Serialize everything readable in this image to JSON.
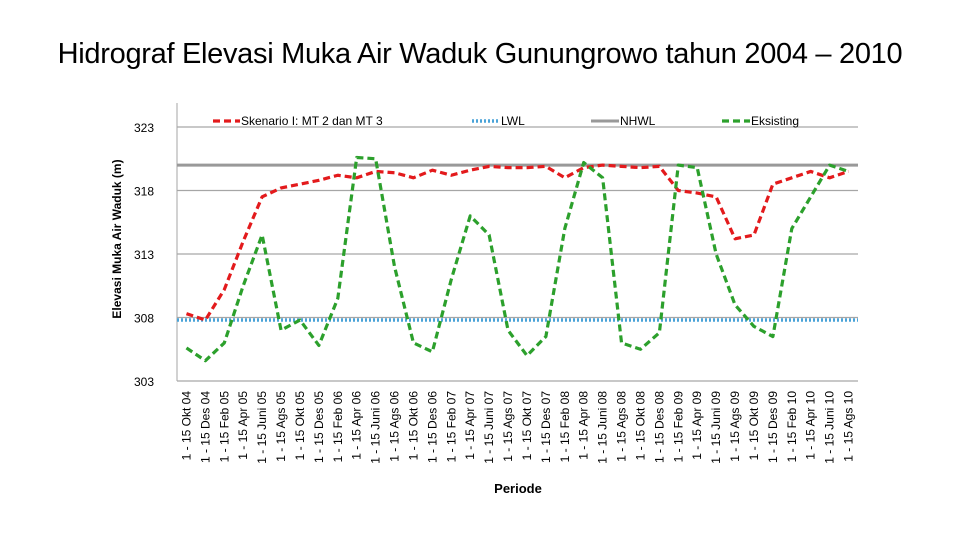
{
  "chart_data": {
    "type": "line",
    "title": "Hidrograf Elevasi Muka Air Waduk Gunungrowo tahun 2004 – 2010",
    "xlabel": "Periode",
    "ylabel": "Elevasi Muka Air Waduk (m)",
    "ylim": [
      303,
      323
    ],
    "yticks": [
      303,
      308,
      313,
      318,
      323
    ],
    "grid": true,
    "legend_position": "top",
    "categories": [
      "1 - 15 Okt 04",
      "1 - 15 Des 04",
      "1 - 15 Feb 05",
      "1 - 15 Apr 05",
      "1 - 15 Juni 05",
      "1 - 15 Ags 05",
      "1 - 15 Okt 05",
      "1 - 15 Des 05",
      "1 - 15 Feb 06",
      "1 - 15 Apr 06",
      "1 - 15 Juni 06",
      "1 - 15 Ags 06",
      "1 - 15 Okt 06",
      "1 - 15 Des 06",
      "1 - 15 Feb 07",
      "1 - 15 Apr 07",
      "1 - 15 Juni 07",
      "1 - 15 Ags 07",
      "1 - 15 Okt 07",
      "1 - 15 Des 07",
      "1 - 15 Feb 08",
      "1 - 15 Apr 08",
      "1 - 15 Juni 08",
      "1 - 15 Ags 08",
      "1 - 15 Okt 08",
      "1 - 15 Des 08",
      "1 - 15 Feb 09",
      "1 - 15 Apr 09",
      "1 - 15 Juni 09",
      "1 - 15 Ags 09",
      "1 - 15 Okt 09",
      "1 - 15 Des 09",
      "1 - 15 Feb 10",
      "1 - 15 Apr 10",
      "1 - 15 Juni 10",
      "1 - 15 Ags 10"
    ],
    "series": [
      {
        "name": "Skenario I: MT 2 dan MT 3",
        "color": "#e31a1c",
        "style": "dashed",
        "values": [
          308.3,
          307.8,
          310.2,
          314.0,
          317.5,
          318.2,
          318.5,
          318.8,
          319.2,
          319.0,
          319.5,
          319.4,
          319.0,
          319.6,
          319.2,
          319.6,
          319.9,
          319.8,
          319.8,
          319.9,
          319.0,
          319.8,
          320.0,
          319.9,
          319.8,
          319.9,
          318.0,
          317.8,
          317.5,
          314.2,
          314.5,
          318.5,
          319.0,
          319.5,
          319.0,
          319.5
        ]
      },
      {
        "name": "LWL",
        "color": "#4aa3d8",
        "style": "dotted",
        "values": [
          307.8,
          307.8,
          307.8,
          307.8,
          307.8,
          307.8,
          307.8,
          307.8,
          307.8,
          307.8,
          307.8,
          307.8,
          307.8,
          307.8,
          307.8,
          307.8,
          307.8,
          307.8,
          307.8,
          307.8,
          307.8,
          307.8,
          307.8,
          307.8,
          307.8,
          307.8,
          307.8,
          307.8,
          307.8,
          307.8,
          307.8,
          307.8,
          307.8,
          307.8,
          307.8,
          307.8
        ]
      },
      {
        "name": "NHWL",
        "color": "#999999",
        "style": "solid",
        "values": [
          320.0,
          320.0,
          320.0,
          320.0,
          320.0,
          320.0,
          320.0,
          320.0,
          320.0,
          320.0,
          320.0,
          320.0,
          320.0,
          320.0,
          320.0,
          320.0,
          320.0,
          320.0,
          320.0,
          320.0,
          320.0,
          320.0,
          320.0,
          320.0,
          320.0,
          320.0,
          320.0,
          320.0,
          320.0,
          320.0,
          320.0,
          320.0,
          320.0,
          320.0,
          320.0,
          320.0
        ]
      },
      {
        "name": "Eksisting",
        "color": "#2ca02c",
        "style": "dashed",
        "values": [
          305.6,
          304.6,
          306.0,
          310.5,
          314.5,
          307.0,
          307.8,
          305.8,
          309.5,
          320.6,
          320.5,
          312.0,
          306.0,
          305.3,
          311.0,
          316.0,
          314.5,
          307.0,
          305.0,
          306.5,
          315.0,
          320.2,
          319.0,
          306.0,
          305.5,
          306.8,
          320.0,
          319.8,
          313.0,
          309.0,
          307.3,
          306.5,
          315.0,
          317.5,
          320.0,
          319.5
        ]
      }
    ]
  }
}
